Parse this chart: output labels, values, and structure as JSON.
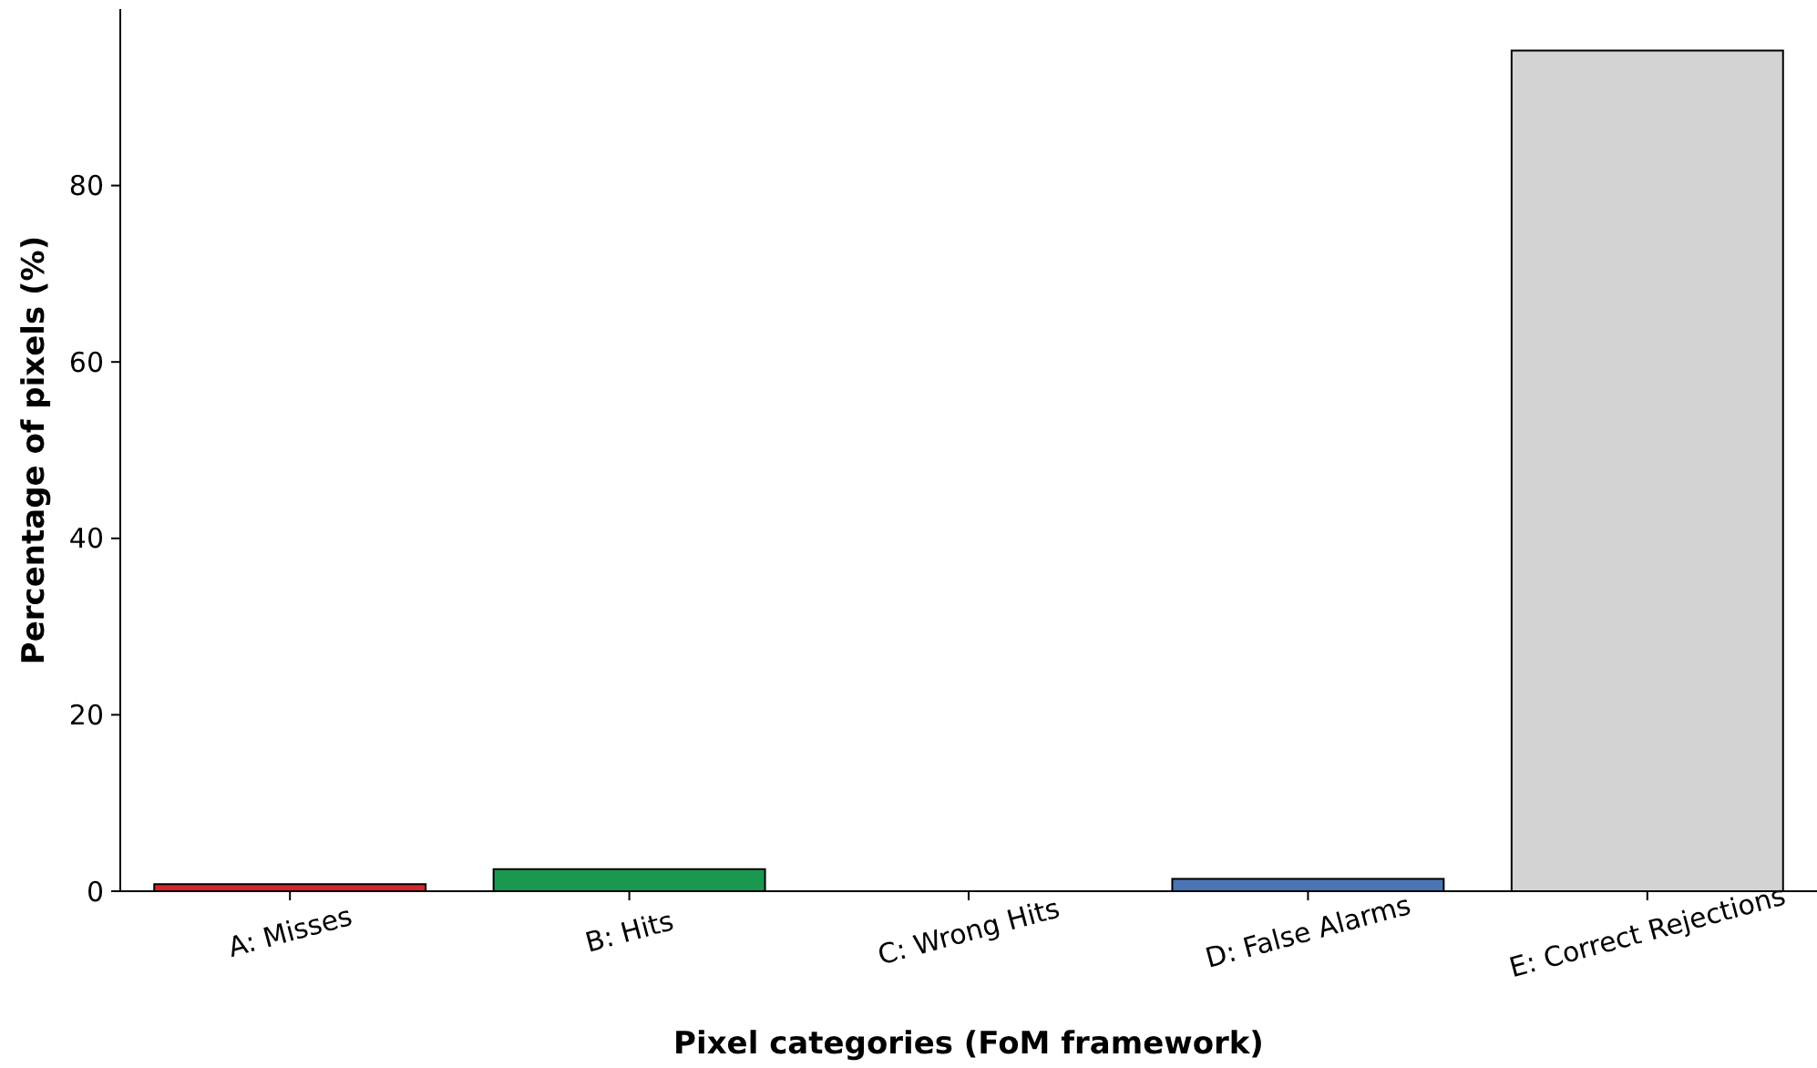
{
  "chart_data": {
    "type": "bar",
    "xlabel": "Pixel categories (FoM framework)",
    "ylabel": "Percentage of pixels (%)",
    "categories": [
      "A: Misses",
      "B: Hits",
      "C: Wrong Hits",
      "D: False Alarms",
      "E: Correct Rejections"
    ],
    "values": [
      0.8,
      2.5,
      0,
      1.4,
      95.3
    ],
    "colors": [
      "#d62728",
      "#1a9850",
      "#7f7f7f",
      "#4a74b4",
      "#d3d3d3"
    ],
    "ylim": [
      0,
      100
    ],
    "yticks": [
      0,
      20,
      40,
      60,
      80
    ],
    "grid": false
  }
}
